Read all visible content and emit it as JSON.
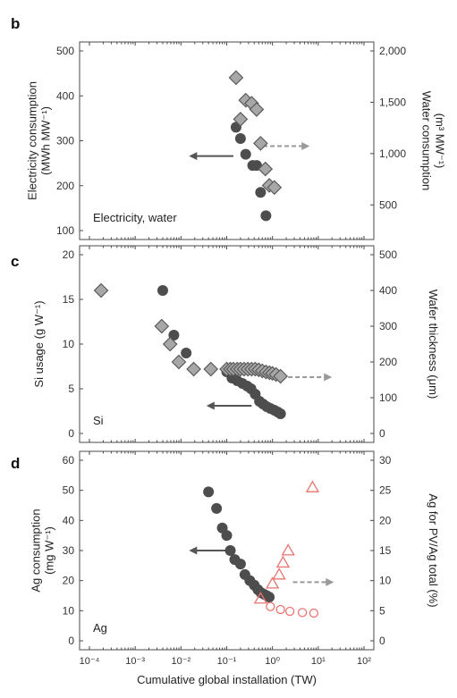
{
  "colors": {
    "axis": "#4a4a4a",
    "dark_marker": "#4d4d4d",
    "diamond_fill": "#a7a7a7",
    "diamond_stroke": "#5a5a5a",
    "arrow_solid": "#555555",
    "arrow_dashed": "#9a9a9a",
    "open_marker": "#e8746f"
  },
  "chart_data": [
    {
      "type": "scatter",
      "panel_label": "b",
      "inset_label": "Electricity, water",
      "x_scale": "log",
      "xlim": [
        0.0001,
        100
      ],
      "ylabel_left": [
        "Electricity consumption",
        "(MWh MW⁻¹)"
      ],
      "ylabel_right": [
        "Water consumption",
        "(m³ MW⁻¹)"
      ],
      "ylim_left": [
        100,
        500
      ],
      "ylim_right": [
        250,
        2000
      ],
      "left_ticks": [
        100,
        200,
        300,
        400,
        500
      ],
      "left_tick_labels": [
        "100",
        "200",
        "300",
        "400",
        "500"
      ],
      "right_ticks": [
        500,
        1000,
        1500,
        2000
      ],
      "right_tick_labels": [
        "500",
        "1,000",
        "1,500",
        "2,000"
      ],
      "series": [
        {
          "marker": "circle",
          "axis": "left",
          "x": [
            0.16,
            0.2,
            0.26,
            0.37,
            0.45,
            0.55,
            0.72
          ],
          "y": [
            330,
            305,
            270,
            245,
            245,
            185,
            133
          ]
        },
        {
          "marker": "diamond",
          "axis": "right",
          "x": [
            0.16,
            0.2,
            0.26,
            0.35,
            0.45,
            0.55,
            0.7,
            0.85,
            1.1
          ],
          "y": [
            1740,
            1335,
            1520,
            1490,
            1430,
            1100,
            850,
            690,
            670
          ]
        }
      ],
      "arrows": [
        {
          "direction": "left",
          "style": "solid",
          "x_from": 0.14,
          "x_to": 0.015,
          "y_left": 266
        },
        {
          "direction": "right",
          "style": "dashed",
          "x_from": 0.62,
          "x_to": 6.5,
          "y_left": 288
        }
      ]
    },
    {
      "type": "scatter",
      "panel_label": "c",
      "inset_label": "Si",
      "x_scale": "log",
      "xlim": [
        0.0001,
        100
      ],
      "ylabel_left": [
        "Si usage (g W⁻¹)"
      ],
      "ylabel_right": [
        "Wafer thickness (μm)"
      ],
      "ylim_left": [
        0,
        20
      ],
      "ylim_right": [
        0,
        500
      ],
      "left_ticks": [
        0,
        5,
        10,
        15,
        20
      ],
      "left_tick_labels": [
        "0",
        "5",
        "10",
        "15",
        "20"
      ],
      "right_ticks": [
        0,
        100,
        200,
        300,
        400,
        500
      ],
      "right_tick_labels": [
        "0",
        "100",
        "200",
        "300",
        "400",
        "500"
      ],
      "series": [
        {
          "marker": "circle",
          "axis": "left",
          "x": [
            0.004,
            0.007,
            0.013,
            0.1,
            0.13,
            0.17,
            0.22,
            0.28,
            0.34,
            0.42,
            0.52,
            0.62,
            0.75,
            0.9,
            1.1,
            1.3,
            1.5
          ],
          "y": [
            16.0,
            11.0,
            9.0,
            6.9,
            6.2,
            5.9,
            5.6,
            5.3,
            5.0,
            4.4,
            3.6,
            3.3,
            3.0,
            2.8,
            2.6,
            2.4,
            2.2
          ]
        },
        {
          "marker": "diamond",
          "axis": "right",
          "x": [
            0.00018,
            0.0038,
            0.0058,
            0.009,
            0.019,
            0.045,
            0.1,
            0.12,
            0.14,
            0.17,
            0.2,
            0.24,
            0.29,
            0.35,
            0.42,
            0.5,
            0.6,
            0.72,
            0.86,
            1.0,
            1.2,
            1.5
          ],
          "y": [
            400,
            300,
            250,
            200,
            180,
            180,
            180,
            180,
            180,
            180,
            180,
            180,
            180,
            180,
            180,
            178,
            175,
            172,
            170,
            168,
            165,
            160
          ]
        }
      ],
      "arrows": [
        {
          "direction": "left",
          "style": "solid",
          "x_from": 0.35,
          "x_to": 0.036,
          "y_left": 3.1
        },
        {
          "direction": "right",
          "style": "dashed",
          "x_from": 2.2,
          "x_to": 20,
          "y_left": 6.3
        }
      ]
    },
    {
      "type": "scatter",
      "panel_label": "d",
      "inset_label": "Ag",
      "x_scale": "log",
      "xlim": [
        0.0001,
        100
      ],
      "xlabel": "Cumulative global installation (TW)",
      "x_tick_labels": [
        "10⁻⁴",
        "10⁻³",
        "10⁻²",
        "10⁻¹",
        "10⁰",
        "10¹",
        "10²"
      ],
      "ylabel_left": [
        "Ag consumption",
        "(mg W⁻¹)"
      ],
      "ylabel_right": [
        "Ag for PV/Ag total (%)"
      ],
      "ylim_left": [
        0,
        60
      ],
      "ylim_right": [
        0,
        30
      ],
      "left_ticks": [
        0,
        10,
        20,
        30,
        40,
        50,
        60
      ],
      "left_tick_labels": [
        "0",
        "10",
        "20",
        "30",
        "40",
        "50",
        "60"
      ],
      "right_ticks": [
        0,
        5,
        10,
        15,
        20,
        25,
        30
      ],
      "right_tick_labels": [
        "0",
        "5",
        "10",
        "15",
        "20",
        "25",
        "30"
      ],
      "series": [
        {
          "marker": "circle",
          "axis": "left",
          "x": [
            0.04,
            0.06,
            0.08,
            0.1,
            0.12,
            0.15,
            0.2,
            0.25,
            0.32,
            0.4,
            0.48,
            0.56,
            0.65,
            0.75,
            0.85
          ],
          "y": [
            49.5,
            44,
            37.5,
            35,
            30,
            27,
            25.5,
            22,
            20,
            18.5,
            17,
            16,
            15.5,
            15,
            14.5
          ]
        },
        {
          "marker": "open-triangle",
          "axis": "right",
          "x": [
            0.55,
            1.0,
            1.4,
            1.7,
            2.2,
            7.5
          ],
          "y": [
            7.0,
            9.5,
            11.0,
            13.0,
            15.0,
            25.5
          ]
        },
        {
          "marker": "open-circle",
          "axis": "right",
          "x": [
            0.9,
            1.5,
            2.4,
            4.5,
            8.0
          ],
          "y": [
            5.7,
            5.2,
            4.9,
            4.7,
            4.6
          ]
        }
      ],
      "arrows": [
        {
          "direction": "left",
          "style": "solid",
          "x_from": 0.13,
          "x_to": 0.015,
          "y_left": 30
        },
        {
          "direction": "right",
          "style": "dashed",
          "x_from": 2.8,
          "x_to": 22,
          "y_left": 19.5
        }
      ]
    }
  ]
}
